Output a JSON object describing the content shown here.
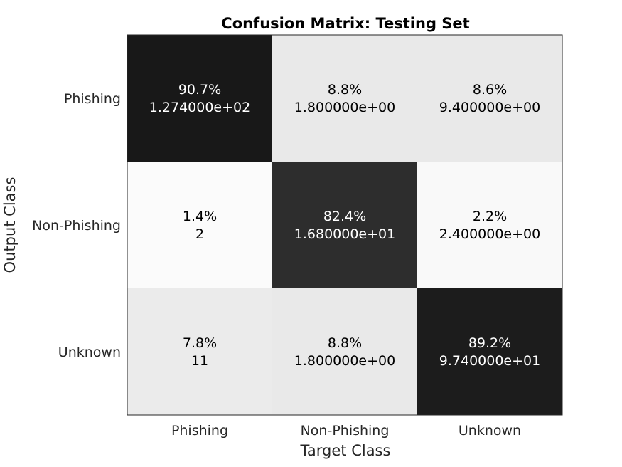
{
  "chart_data": {
    "type": "heatmap",
    "title": "Confusion Matrix: Testing Set",
    "xlabel": "Target Class",
    "ylabel": "Output Class",
    "x_categories": [
      "Phishing",
      "Non-Phishing",
      "Unknown"
    ],
    "y_categories": [
      "Phishing",
      "Non-Phishing",
      "Unknown"
    ],
    "colormap": "gray-reversed",
    "cells": [
      [
        {
          "percent": 90.7,
          "pct_label": "90.7%",
          "count_label": "1.274000e+02"
        },
        {
          "percent": 8.8,
          "pct_label": "8.8%",
          "count_label": "1.800000e+00"
        },
        {
          "percent": 8.6,
          "pct_label": "8.6%",
          "count_label": "9.400000e+00"
        }
      ],
      [
        {
          "percent": 1.4,
          "pct_label": "1.4%",
          "count_label": "2"
        },
        {
          "percent": 82.4,
          "pct_label": "82.4%",
          "count_label": "1.680000e+01"
        },
        {
          "percent": 2.2,
          "pct_label": "2.2%",
          "count_label": "2.400000e+00"
        }
      ],
      [
        {
          "percent": 7.8,
          "pct_label": "7.8%",
          "count_label": "11"
        },
        {
          "percent": 8.8,
          "pct_label": "8.8%",
          "count_label": "1.800000e+00"
        },
        {
          "percent": 89.2,
          "pct_label": "89.2%",
          "count_label": "9.740000e+01"
        }
      ]
    ]
  }
}
